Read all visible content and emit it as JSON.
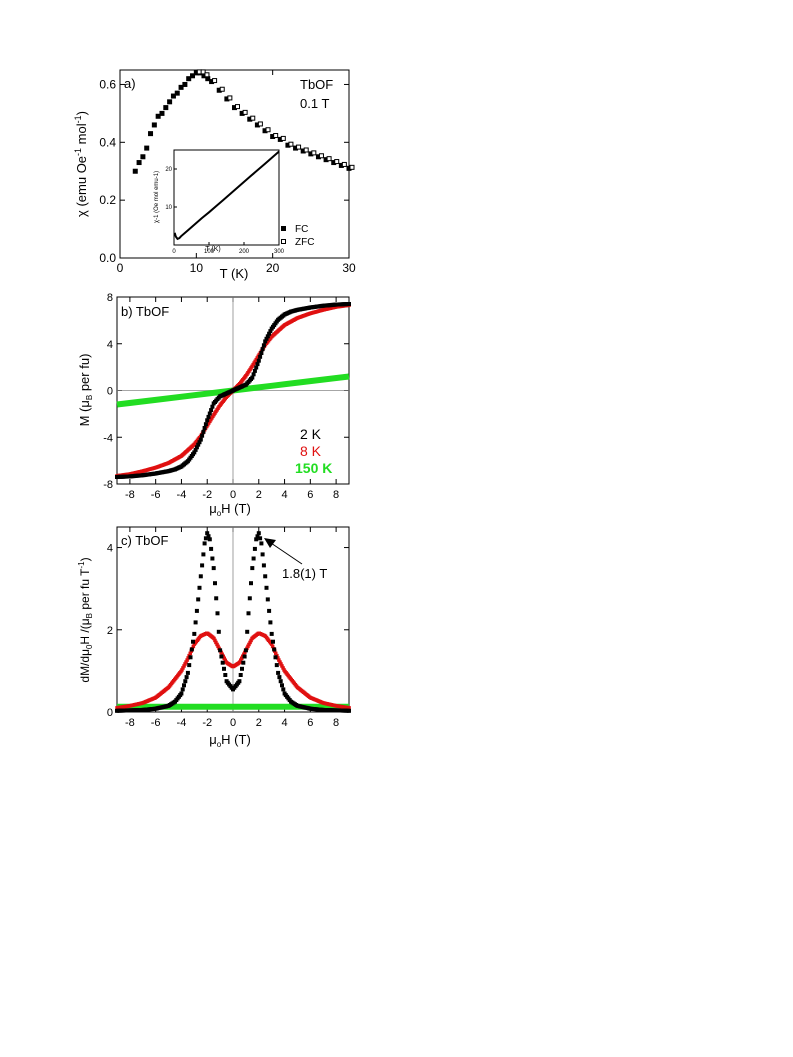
{
  "colors": {
    "black": "#000000",
    "red": "#e01010",
    "green": "#22dd22"
  },
  "chart_data": [
    {
      "type": "scatter",
      "panel_label": "a)",
      "annotation_lines": [
        "TbOF",
        "0.1 T"
      ],
      "xlabel": "T (K)",
      "ylabel_parts": [
        "χ (emu Oe",
        "-1",
        "  mol",
        "-1",
        ")"
      ],
      "xlim": [
        0,
        30
      ],
      "ylim": [
        0,
        0.65
      ],
      "xticks": [
        0,
        10,
        20,
        30
      ],
      "yticks": [
        0.0,
        0.2,
        0.4,
        0.6
      ],
      "ytick_labels": [
        "0.0",
        "0.2",
        "0.4",
        "0.6"
      ],
      "legend": [
        "FC",
        "ZFC"
      ],
      "series": [
        {
          "name": "FC",
          "marker": "filled-square",
          "x": [
            2.0,
            2.5,
            3.0,
            3.5,
            4.0,
            4.5,
            5.0,
            5.5,
            6.0,
            6.5,
            7.0,
            7.5,
            8.0,
            8.5,
            9.0,
            9.5,
            10.0,
            10.5,
            11.0,
            11.5,
            12.0,
            13.0,
            14.0,
            15.0,
            16.0,
            17.0,
            18.0,
            19.0,
            20.0,
            21.0,
            22.0,
            23.0,
            24.0,
            25.0,
            26.0,
            27.0,
            28.0,
            29.0,
            30.0
          ],
          "y": [
            0.3,
            0.33,
            0.35,
            0.38,
            0.43,
            0.46,
            0.49,
            0.5,
            0.52,
            0.54,
            0.56,
            0.57,
            0.59,
            0.6,
            0.62,
            0.63,
            0.64,
            0.64,
            0.63,
            0.62,
            0.61,
            0.58,
            0.55,
            0.52,
            0.5,
            0.48,
            0.46,
            0.44,
            0.42,
            0.41,
            0.39,
            0.38,
            0.37,
            0.36,
            0.35,
            0.34,
            0.33,
            0.32,
            0.31
          ]
        },
        {
          "name": "ZFC",
          "marker": "open-square",
          "x": [
            10.0,
            10.5,
            11.0,
            12.0,
            13.0,
            14.0,
            15.0,
            16.0,
            17.0,
            18.0,
            19.0,
            20.0,
            21.0,
            22.0,
            23.0,
            24.0,
            25.0,
            26.0,
            27.0,
            28.0,
            29.0,
            30.0
          ],
          "y": [
            0.64,
            0.64,
            0.63,
            0.61,
            0.58,
            0.55,
            0.52,
            0.5,
            0.48,
            0.46,
            0.44,
            0.42,
            0.41,
            0.39,
            0.38,
            0.37,
            0.36,
            0.35,
            0.34,
            0.33,
            0.32,
            0.31
          ]
        }
      ],
      "inset": {
        "type": "line",
        "xlabel": "T (K)",
        "ylabel": "χ-1 (Oe mol emu-1)",
        "xlim": [
          0,
          300
        ],
        "ylim": [
          0,
          25
        ],
        "xticks": [
          0,
          100,
          200,
          300
        ],
        "yticks": [
          10,
          20
        ],
        "x": [
          2,
          5,
          10,
          15,
          20,
          40,
          60,
          80,
          100,
          120,
          140,
          160,
          180,
          200,
          220,
          240,
          260,
          280,
          300
        ],
        "y": [
          3.2,
          2.2,
          1.6,
          1.8,
          2.3,
          3.9,
          5.5,
          7.1,
          8.6,
          10.2,
          11.8,
          13.4,
          15.0,
          16.6,
          18.2,
          19.8,
          21.4,
          23.0,
          24.6
        ]
      }
    },
    {
      "type": "scatter",
      "panel_label": "b) TbOF",
      "xlabel": "μ0H (T)",
      "ylabel": "M (μB per fu)",
      "xlim": [
        -9,
        9
      ],
      "ylim": [
        -8,
        8
      ],
      "xticks": [
        -8,
        -6,
        -4,
        -2,
        0,
        2,
        4,
        6,
        8
      ],
      "yticks": [
        -8,
        -4,
        0,
        4,
        8
      ],
      "legend": [
        "2 K",
        "8 K",
        "150 K"
      ],
      "series": [
        {
          "name": "2 K",
          "x": [
            -9.0,
            -8.0,
            -7.0,
            -6.0,
            -5.0,
            -4.5,
            -4.0,
            -3.5,
            -3.0,
            -2.5,
            -2.0,
            -1.5,
            -1.0,
            -0.5,
            0.0,
            0.5,
            1.0,
            1.5,
            2.0,
            2.5,
            3.0,
            3.5,
            4.0,
            4.5,
            5.0,
            6.0,
            7.0,
            8.0,
            9.0
          ],
          "y": [
            -7.4,
            -7.35,
            -7.25,
            -7.1,
            -6.9,
            -6.75,
            -6.5,
            -6.05,
            -5.3,
            -4.2,
            -2.55,
            -1.1,
            -0.5,
            -0.25,
            0.0,
            0.25,
            0.5,
            1.1,
            2.55,
            4.2,
            5.3,
            6.05,
            6.5,
            6.75,
            6.9,
            7.1,
            7.25,
            7.35,
            7.4
          ]
        },
        {
          "name": "8 K",
          "x": [
            -9.0,
            -8.0,
            -7.0,
            -6.0,
            -5.0,
            -4.0,
            -3.0,
            -2.5,
            -2.0,
            -1.5,
            -1.0,
            -0.5,
            0.0,
            0.5,
            1.0,
            1.5,
            2.0,
            2.5,
            3.0,
            4.0,
            5.0,
            6.0,
            7.0,
            8.0,
            9.0
          ],
          "y": [
            -7.3,
            -7.15,
            -6.9,
            -6.6,
            -6.2,
            -5.6,
            -4.6,
            -3.9,
            -3.0,
            -2.1,
            -1.25,
            -0.55,
            0.0,
            0.55,
            1.25,
            2.1,
            3.0,
            3.9,
            4.6,
            5.6,
            6.2,
            6.6,
            6.9,
            7.15,
            7.3
          ]
        },
        {
          "name": "150 K",
          "x": [
            -9,
            -6,
            -3,
            0,
            3,
            6,
            9
          ],
          "y": [
            -1.2,
            -0.8,
            -0.4,
            0.0,
            0.4,
            0.8,
            1.2
          ]
        }
      ]
    },
    {
      "type": "scatter",
      "panel_label": "c) TbOF",
      "annotation": "1.8(1) T",
      "xlabel": "μ0H (T)",
      "ylabel": "dM/dμ0H /(μB per fu T-1)",
      "xlim": [
        -9,
        9
      ],
      "ylim": [
        0,
        4.5
      ],
      "xticks": [
        -8,
        -6,
        -4,
        -2,
        0,
        2,
        4,
        6,
        8
      ],
      "yticks": [
        0,
        2,
        4
      ],
      "series": [
        {
          "name": "2 K",
          "x": [
            -9.0,
            -7.0,
            -6.0,
            -5.0,
            -4.5,
            -4.0,
            -3.5,
            -3.0,
            -2.5,
            -2.2,
            -2.0,
            -1.8,
            -1.5,
            -1.2,
            -1.0,
            -0.5,
            0.0,
            0.5,
            1.0,
            1.2,
            1.5,
            1.8,
            2.0,
            2.2,
            2.5,
            3.0,
            3.5,
            4.0,
            4.5,
            5.0,
            6.0,
            7.0,
            9.0
          ],
          "y": [
            0.03,
            0.05,
            0.08,
            0.15,
            0.25,
            0.45,
            0.95,
            1.9,
            3.3,
            4.1,
            4.35,
            4.2,
            3.5,
            2.4,
            1.5,
            0.75,
            0.55,
            0.75,
            1.5,
            2.4,
            3.5,
            4.2,
            4.35,
            4.1,
            3.3,
            1.9,
            0.95,
            0.45,
            0.25,
            0.15,
            0.08,
            0.05,
            0.03
          ]
        },
        {
          "name": "8 K",
          "x": [
            -9.0,
            -8.0,
            -7.0,
            -6.0,
            -5.0,
            -4.0,
            -3.5,
            -3.0,
            -2.5,
            -2.0,
            -1.5,
            -1.0,
            -0.5,
            0.0,
            0.5,
            1.0,
            1.5,
            2.0,
            2.5,
            3.0,
            3.5,
            4.0,
            5.0,
            6.0,
            7.0,
            8.0,
            9.0
          ],
          "y": [
            0.1,
            0.15,
            0.22,
            0.35,
            0.6,
            1.0,
            1.3,
            1.65,
            1.85,
            1.92,
            1.8,
            1.5,
            1.2,
            1.1,
            1.2,
            1.5,
            1.8,
            1.92,
            1.85,
            1.65,
            1.3,
            1.0,
            0.6,
            0.35,
            0.22,
            0.15,
            0.1
          ]
        },
        {
          "name": "150 K",
          "x": [
            -9,
            9
          ],
          "y": [
            0.13,
            0.13
          ]
        }
      ]
    }
  ]
}
